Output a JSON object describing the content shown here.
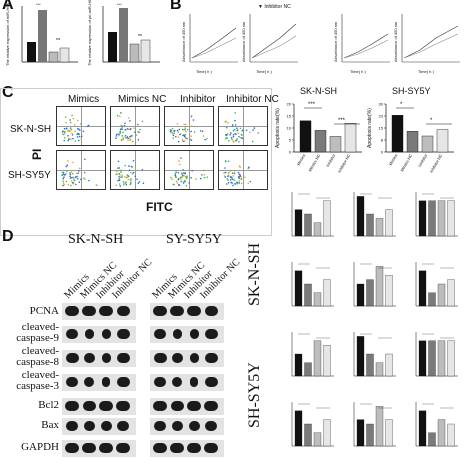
{
  "panels": {
    "a": "A",
    "b": "B",
    "c": "C",
    "d": "D"
  },
  "panel_a": {
    "ylabels": [
      "The relative expression of miR-H6NJN",
      "The relative expression of pri-miR-H6NJN"
    ]
  },
  "panel_b": {
    "legend": "Inhibitor NC",
    "xlabel": "Time( h )",
    "ylabel": "Absorbance of 450 nm",
    "ticks": [
      "0",
      "24",
      "48",
      "72"
    ]
  },
  "panel_c": {
    "columns": [
      "Mimics",
      "Mimics NC",
      "Inhibitor",
      "Inhibitor NC"
    ],
    "rows": [
      "SK-N-SH",
      "SH-SY5Y"
    ],
    "yaxis": "PI",
    "xaxis": "FITC",
    "chart_titles": [
      "SK-N-SH",
      "SH-SY5Y"
    ],
    "chart_ylabel": "Apoptosis rate(%)",
    "significance": [
      "***",
      "***",
      "*",
      "*"
    ]
  },
  "panel_d": {
    "cell_lines": [
      "SK-N-SH",
      "SY-SY5Y"
    ],
    "lanes": [
      "Mimics",
      "Mimics NC",
      "Inhibitor",
      "Inhibitor NC"
    ],
    "proteins": [
      "PCNA",
      "cleaved-\ncaspase-9",
      "cleaved-\ncaspase-8",
      "cleaved-\ncaspase-3",
      "Bcl2",
      "Bax",
      "GAPDH"
    ],
    "side_labels": [
      "SK-N-SH",
      "SH-SY5Y"
    ]
  },
  "chart_data": [
    {
      "type": "bar",
      "title": "SK-N-SH",
      "ylabel": "Apoptosis rate(%)",
      "categories": [
        "Mimics",
        "Mimics NC",
        "Inhibitor",
        "Inhibitor NC"
      ],
      "values": [
        13,
        9,
        6.5,
        12
      ],
      "ylim": [
        0,
        20
      ]
    },
    {
      "type": "bar",
      "title": "SH-SY5Y",
      "ylabel": "Apoptosis rate(%)",
      "categories": [
        "Mimics",
        "Mimics NC",
        "Inhibitor",
        "Inhibitor NC"
      ],
      "values": [
        23,
        13,
        10,
        14
      ],
      "ylim": [
        0,
        30
      ]
    }
  ],
  "colors": {
    "bar_fills": [
      "#111111",
      "#7a7a7a",
      "#bdbdbd",
      "#e6e6e6"
    ]
  }
}
